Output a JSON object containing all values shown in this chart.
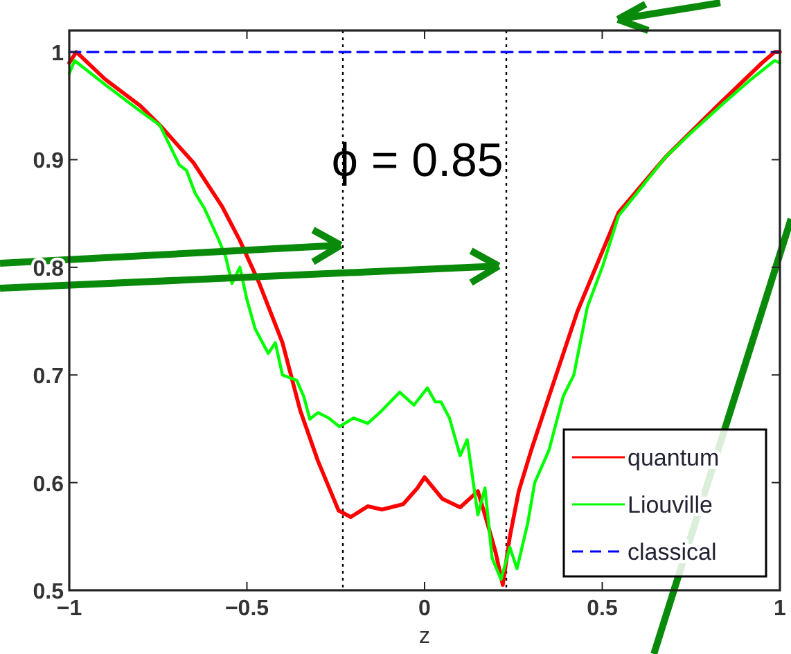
{
  "chart_data": {
    "type": "line",
    "xlabel": "z",
    "annotations": [
      "ϕ = 0.85"
    ],
    "xlim": [
      -1,
      1
    ],
    "ylim": [
      0.5,
      1.02
    ],
    "xticks": [
      {
        "value": -1,
        "label": "−1"
      },
      {
        "value": -0.5,
        "label": "−0.5"
      },
      0,
      0.5,
      1
    ],
    "yticks": [
      0.5,
      0.6,
      0.7,
      0.8,
      0.9,
      1
    ],
    "legend": "bottom right",
    "grid": false,
    "ref_lines": [
      {
        "axis": "x",
        "value": -0.23,
        "color": "#000000",
        "line_style": "dotted"
      },
      {
        "axis": "x",
        "value": 0.23,
        "color": "#000000",
        "line_style": "dotted"
      }
    ],
    "series": [
      {
        "name": "quantum",
        "color": "#ff0000",
        "line_style": "solid",
        "x": [
          -1,
          -0.98,
          -0.9,
          -0.8,
          -0.745,
          -0.65,
          -0.569,
          -0.52,
          -0.465,
          -0.4,
          -0.35,
          -0.3,
          -0.242,
          -0.208,
          -0.16,
          -0.12,
          -0.06,
          -0.02,
          0,
          0.05,
          0.1,
          0.15,
          0.177,
          0.2,
          0.22,
          0.24,
          0.265,
          0.3,
          0.35,
          0.43,
          0.546,
          0.677,
          0.83,
          0.95,
          0.985,
          1
        ],
        "values": [
          0.99,
          1.0,
          0.975,
          0.95,
          0.932,
          0.897,
          0.856,
          0.825,
          0.785,
          0.73,
          0.667,
          0.62,
          0.574,
          0.568,
          0.578,
          0.575,
          0.58,
          0.595,
          0.605,
          0.585,
          0.577,
          0.592,
          0.562,
          0.535,
          0.505,
          0.55,
          0.592,
          0.63,
          0.68,
          0.759,
          0.851,
          0.902,
          0.952,
          0.99,
          1.0,
          1.0
        ]
      },
      {
        "name": "Liouville",
        "color": "#00ff00",
        "line_style": "solid",
        "x": [
          -1,
          -0.985,
          -0.9,
          -0.8,
          -0.745,
          -0.708,
          -0.69,
          -0.67,
          -0.646,
          -0.62,
          -0.58,
          -0.56,
          -0.542,
          -0.52,
          -0.5,
          -0.477,
          -0.44,
          -0.42,
          -0.4,
          -0.36,
          -0.34,
          -0.323,
          -0.3,
          -0.27,
          -0.24,
          -0.2,
          -0.16,
          -0.12,
          -0.07,
          -0.03,
          0.008,
          0.03,
          0.046,
          0.07,
          0.1,
          0.12,
          0.15,
          0.17,
          0.19,
          0.215,
          0.24,
          0.26,
          0.29,
          0.31,
          0.35,
          0.39,
          0.42,
          0.458,
          0.5,
          0.546,
          0.6,
          0.677,
          0.75,
          0.84,
          0.92,
          0.985,
          1
        ],
        "values": [
          0.98,
          0.992,
          0.97,
          0.945,
          0.932,
          0.907,
          0.895,
          0.89,
          0.869,
          0.855,
          0.826,
          0.81,
          0.785,
          0.8,
          0.77,
          0.743,
          0.72,
          0.73,
          0.7,
          0.695,
          0.68,
          0.659,
          0.665,
          0.66,
          0.652,
          0.66,
          0.655,
          0.667,
          0.684,
          0.672,
          0.688,
          0.675,
          0.675,
          0.66,
          0.625,
          0.64,
          0.57,
          0.595,
          0.53,
          0.51,
          0.54,
          0.52,
          0.562,
          0.6,
          0.63,
          0.68,
          0.7,
          0.763,
          0.8,
          0.848,
          0.87,
          0.902,
          0.925,
          0.952,
          0.975,
          0.992,
          0.99
        ]
      },
      {
        "name": "classical",
        "color": "#0000ff",
        "line_style": "dashed",
        "x": [
          -1,
          1
        ],
        "values": [
          1,
          1
        ]
      }
    ]
  }
}
